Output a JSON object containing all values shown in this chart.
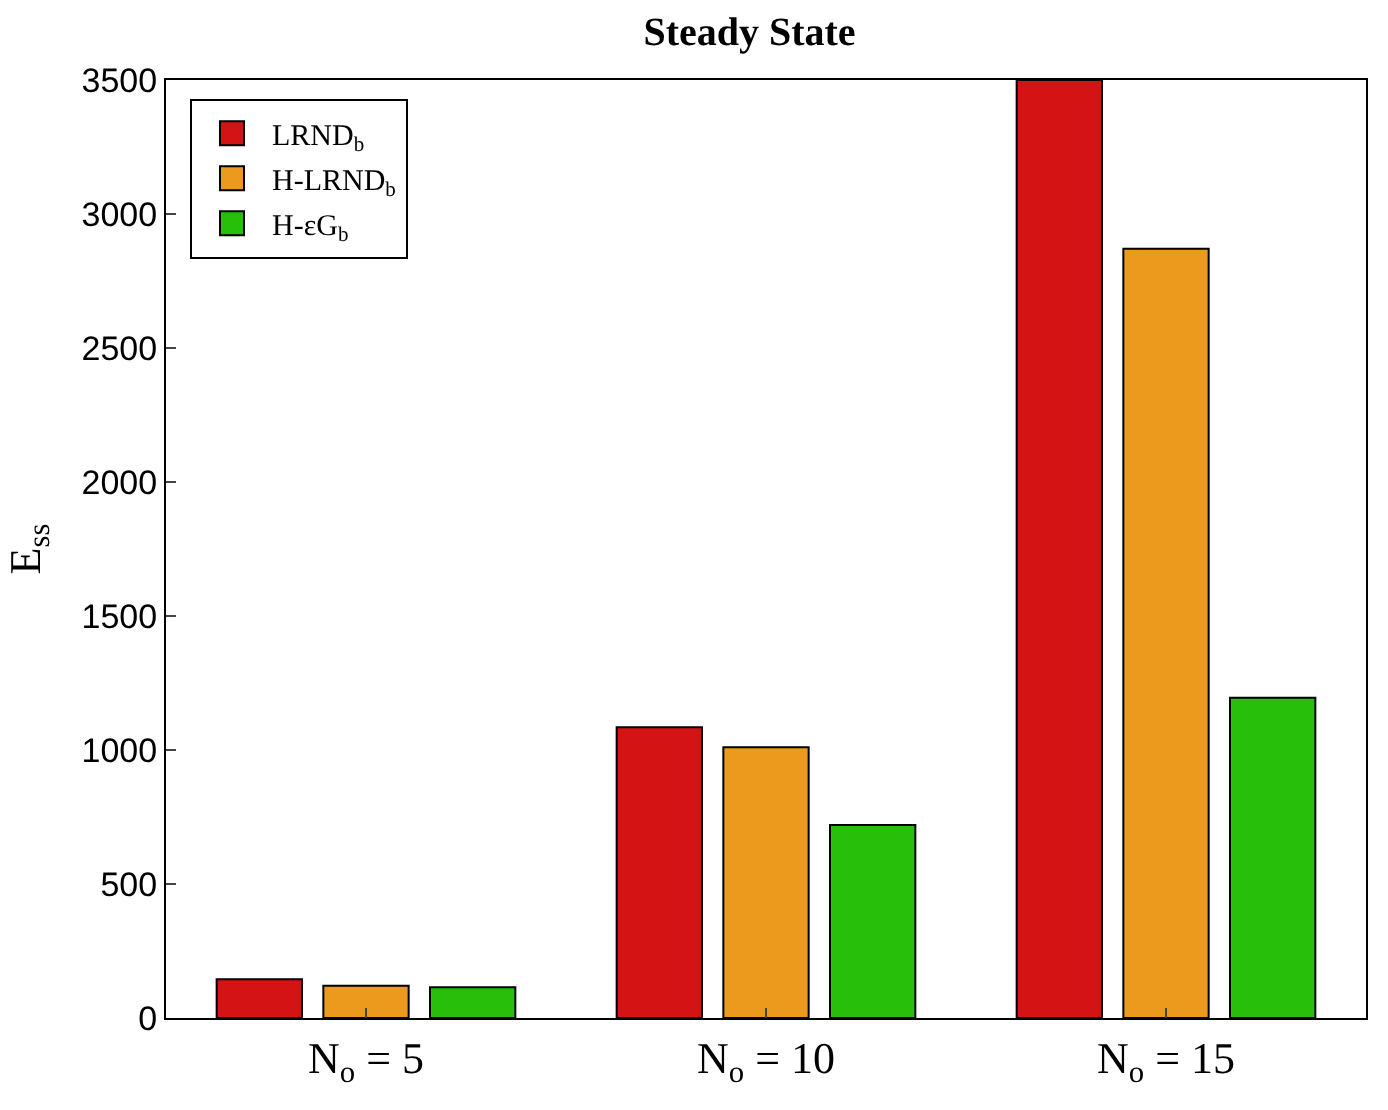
{
  "chart_data": {
    "type": "bar",
    "title": "Steady State",
    "ylabel": "E$_{ss}$",
    "categories": [
      "N$_{o}$ = 5",
      "N$_{o}$ = 10",
      "N$_{o}$ = 15"
    ],
    "series": [
      {
        "name": "LRND$_{b}$",
        "color": "#d41414",
        "values": [
          145,
          1085,
          3500
        ]
      },
      {
        "name": "H-LRND$_{b}$",
        "color": "#eb9a1e",
        "values": [
          120,
          1010,
          2870
        ]
      },
      {
        "name": "H-εG$_{b}$",
        "color": "#27bf0a",
        "values": [
          115,
          720,
          1195
        ]
      }
    ],
    "ylim": [
      0,
      3500
    ],
    "yticks": [
      0,
      500,
      1000,
      1500,
      2000,
      2500,
      3000,
      3500
    ],
    "grid": false,
    "legend": "top left"
  }
}
